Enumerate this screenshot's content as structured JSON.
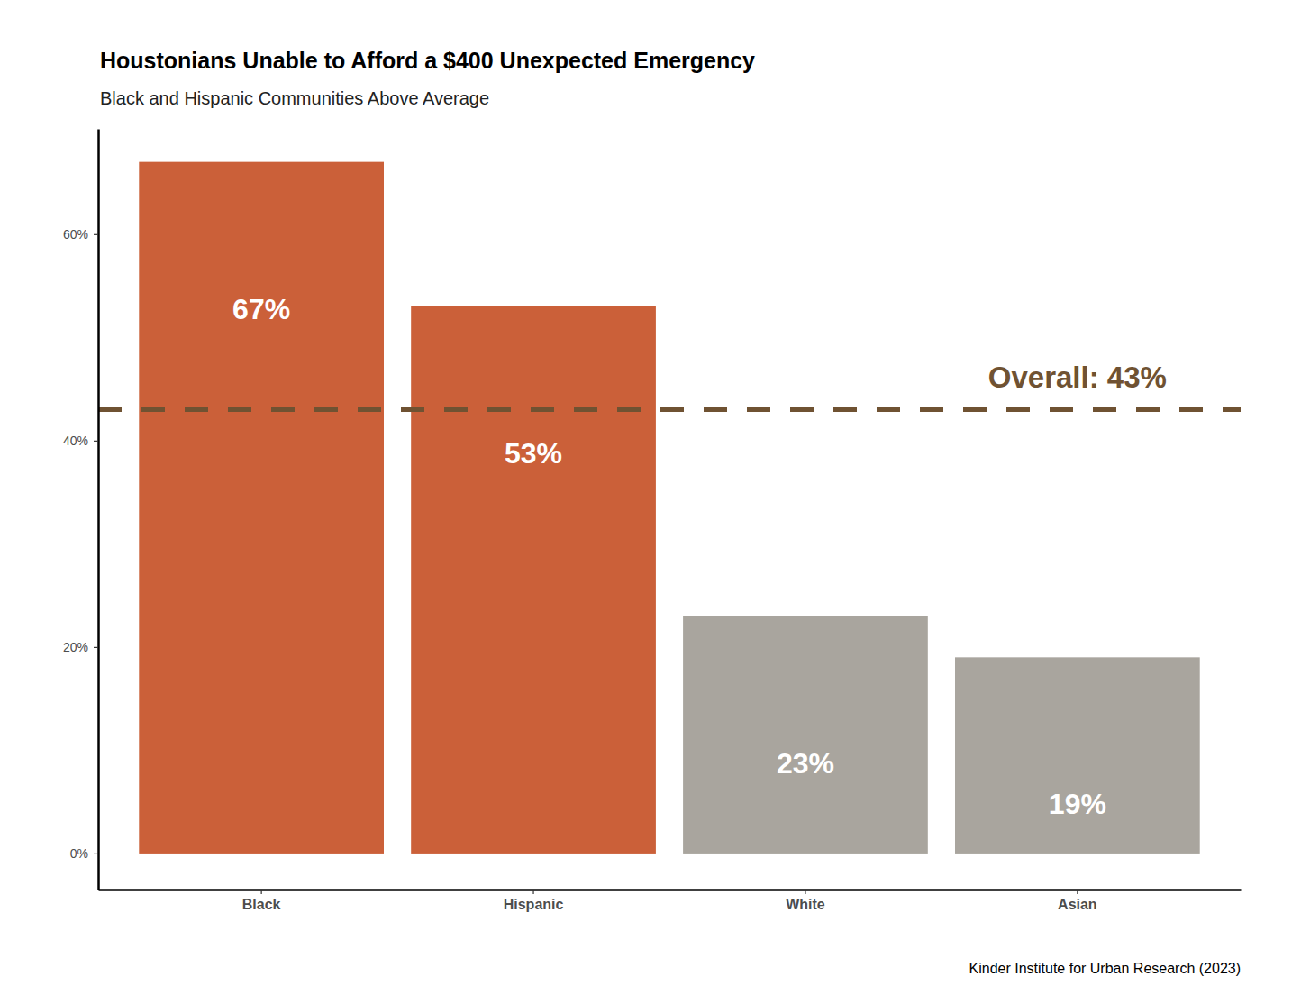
{
  "chart_data": {
    "type": "bar",
    "title": "Houstonians Unable to Afford a $400 Unexpected Emergency",
    "subtitle": "Black and Hispanic Communities Above Average",
    "caption": "Kinder Institute for Urban Research (2023)",
    "categories": [
      "Black",
      "Hispanic",
      "White",
      "Asian"
    ],
    "values": [
      67,
      53,
      23,
      19
    ],
    "value_labels": [
      "67%",
      "53%",
      "23%",
      "19%"
    ],
    "colors": [
      "#cb6039",
      "#cb6039",
      "#a9a59e",
      "#a9a59e"
    ],
    "data_labels": true,
    "ylim": [
      -3.5,
      70.2
    ],
    "yticks": [
      {
        "value": 0,
        "label": "0%"
      },
      {
        "value": 20,
        "label": "20%"
      },
      {
        "value": 40,
        "label": "40%"
      },
      {
        "value": 60,
        "label": "60%"
      }
    ],
    "grid": false,
    "reference_line": {
      "value": 43,
      "label": "Overall: 43%",
      "color": "#6f5232"
    }
  }
}
